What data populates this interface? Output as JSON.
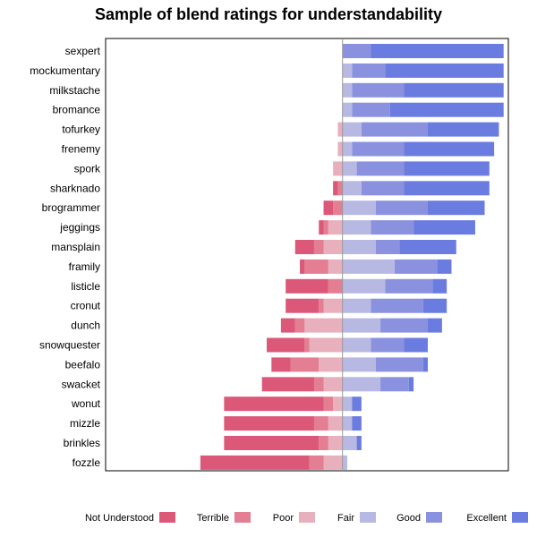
{
  "chart_data": {
    "type": "bar",
    "title": "Sample of blend ratings for understandability",
    "xlabel": "",
    "ylabel": "",
    "orientation": "horizontal",
    "stacking": "diverging",
    "xlim": [
      -50,
      35
    ],
    "grid": false,
    "legend_position": "bottom",
    "categories": [
      "sexpert",
      "mockumentary",
      "milkstache",
      "bromance",
      "tofurkey",
      "frenemy",
      "spork",
      "sharknado",
      "brogrammer",
      "jeggings",
      "mansplain",
      "framily",
      "listicle",
      "cronut",
      "dunch",
      "snowquester",
      "beefalo",
      "swacket",
      "wonut",
      "mizzle",
      "brinkles",
      "fozzle"
    ],
    "series": [
      {
        "name": "Not Understood",
        "color": "#dc5878",
        "side": "negative",
        "values": [
          0,
          0,
          0,
          0,
          0,
          0,
          0,
          1,
          2,
          1,
          4,
          1,
          9,
          7,
          3,
          8,
          4,
          11,
          21,
          19,
          20,
          23
        ]
      },
      {
        "name": "Terrible",
        "color": "#e37e93",
        "side": "negative",
        "values": [
          0,
          0,
          0,
          0,
          0,
          0,
          0,
          1,
          2,
          1,
          2,
          5,
          3,
          1,
          2,
          1,
          6,
          2,
          2,
          3,
          2,
          3
        ]
      },
      {
        "name": "Poor",
        "color": "#e8b0bd",
        "side": "negative",
        "values": [
          0,
          0,
          0,
          0,
          1,
          1,
          2,
          0,
          0,
          3,
          4,
          3,
          0,
          4,
          8,
          7,
          5,
          4,
          2,
          3,
          3,
          4
        ]
      },
      {
        "name": "Fair",
        "color": "#b7b9e3",
        "side": "positive",
        "values": [
          0,
          2,
          2,
          2,
          4,
          2,
          3,
          4,
          7,
          6,
          7,
          11,
          9,
          6,
          8,
          6,
          7,
          8,
          2,
          2,
          3,
          1
        ]
      },
      {
        "name": "Good",
        "color": "#8a92df",
        "side": "positive",
        "values": [
          6,
          7,
          11,
          8,
          14,
          11,
          10,
          9,
          11,
          9,
          5,
          9,
          10,
          11,
          10,
          7,
          10,
          6,
          0,
          0,
          0,
          0
        ]
      },
      {
        "name": "Excellent",
        "color": "#6b7ce0",
        "side": "positive",
        "values": [
          28,
          25,
          21,
          24,
          15,
          19,
          18,
          18,
          12,
          13,
          12,
          3,
          3,
          5,
          3,
          5,
          1,
          1,
          2,
          2,
          1,
          0
        ]
      }
    ]
  }
}
